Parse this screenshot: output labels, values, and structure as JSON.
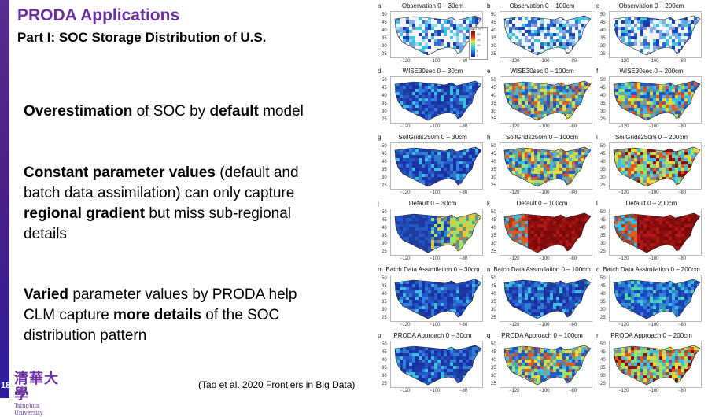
{
  "slide": {
    "page_number": "18",
    "title": "PRODA Applications",
    "subtitle": "Part I: SOC Storage Distribution of U.S.",
    "bullets": [
      [
        {
          "t": "Overestimation",
          "b": true
        },
        {
          "t": " of SOC by ",
          "b": false
        },
        {
          "t": "default",
          "b": true
        },
        {
          "t": " model",
          "b": false
        }
      ],
      [
        {
          "t": "Constant parameter values",
          "b": true
        },
        {
          "t": " (default and batch data assimilation) can only capture ",
          "b": false
        },
        {
          "t": "regional gradient",
          "b": true
        },
        {
          "t": " but miss sub-regional details",
          "b": false
        }
      ],
      [
        {
          "t": "Varied",
          "b": true
        },
        {
          "t": " parameter values by PRODA help CLM capture ",
          "b": false
        },
        {
          "t": "more details",
          "b": true
        },
        {
          "t": " of the SOC distribution pattern",
          "b": false
        }
      ]
    ],
    "citation": "(Tao et al. 2020 Frontiers in Big Data)",
    "logo": {
      "chinese": "清華大學",
      "english": "Tsinghua University"
    }
  },
  "figure": {
    "y_ticks": [
      "50",
      "45",
      "40",
      "35",
      "30",
      "25"
    ],
    "x_ticks": [
      "−120",
      "−100",
      "−80"
    ],
    "colorbar": {
      "unit": "kg C m⁻²",
      "labels": [
        "20",
        "15",
        "10",
        "5",
        "0"
      ]
    },
    "panels": [
      {
        "letter": "a",
        "title": "Observation 0 – 30cm",
        "style": "obs"
      },
      {
        "letter": "b",
        "title": "Observation 0 – 100cm",
        "style": "obs"
      },
      {
        "letter": "c",
        "title": "Observation 0 – 200cm",
        "style": "obs"
      },
      {
        "letter": "d",
        "title": "WISE30sec 0 – 30cm",
        "style": "low"
      },
      {
        "letter": "e",
        "title": "WISE30sec 0 – 100cm",
        "style": "mid"
      },
      {
        "letter": "f",
        "title": "WISE30sec 0 – 200cm",
        "style": "mid"
      },
      {
        "letter": "g",
        "title": "SoilGrids250m 0 – 30cm",
        "style": "low"
      },
      {
        "letter": "h",
        "title": "SoilGrids250m 0 – 100cm",
        "style": "mid"
      },
      {
        "letter": "i",
        "title": "SoilGrids250m 0 – 200cm",
        "style": "high"
      },
      {
        "letter": "j",
        "title": "Default 0 – 30cm",
        "style": "default1"
      },
      {
        "letter": "k",
        "title": "Default 0 – 100cm",
        "style": "default2"
      },
      {
        "letter": "l",
        "title": "Default 0 – 200cm",
        "style": "default2"
      },
      {
        "letter": "m",
        "title": "Batch Data Assimilation 0 – 30cm",
        "style": "low"
      },
      {
        "letter": "n",
        "title": "Batch Data Assimilation 0 – 100cm",
        "style": "low"
      },
      {
        "letter": "o",
        "title": "Batch Data Assimilation 0 – 200cm",
        "style": "lowmid"
      },
      {
        "letter": "p",
        "title": "PRODA Approach 0 – 30cm",
        "style": "low"
      },
      {
        "letter": "q",
        "title": "PRODA Approach 0 – 100cm",
        "style": "mid"
      },
      {
        "letter": "r",
        "title": "PRODA Approach 0 – 200cm",
        "style": "high"
      }
    ]
  }
}
